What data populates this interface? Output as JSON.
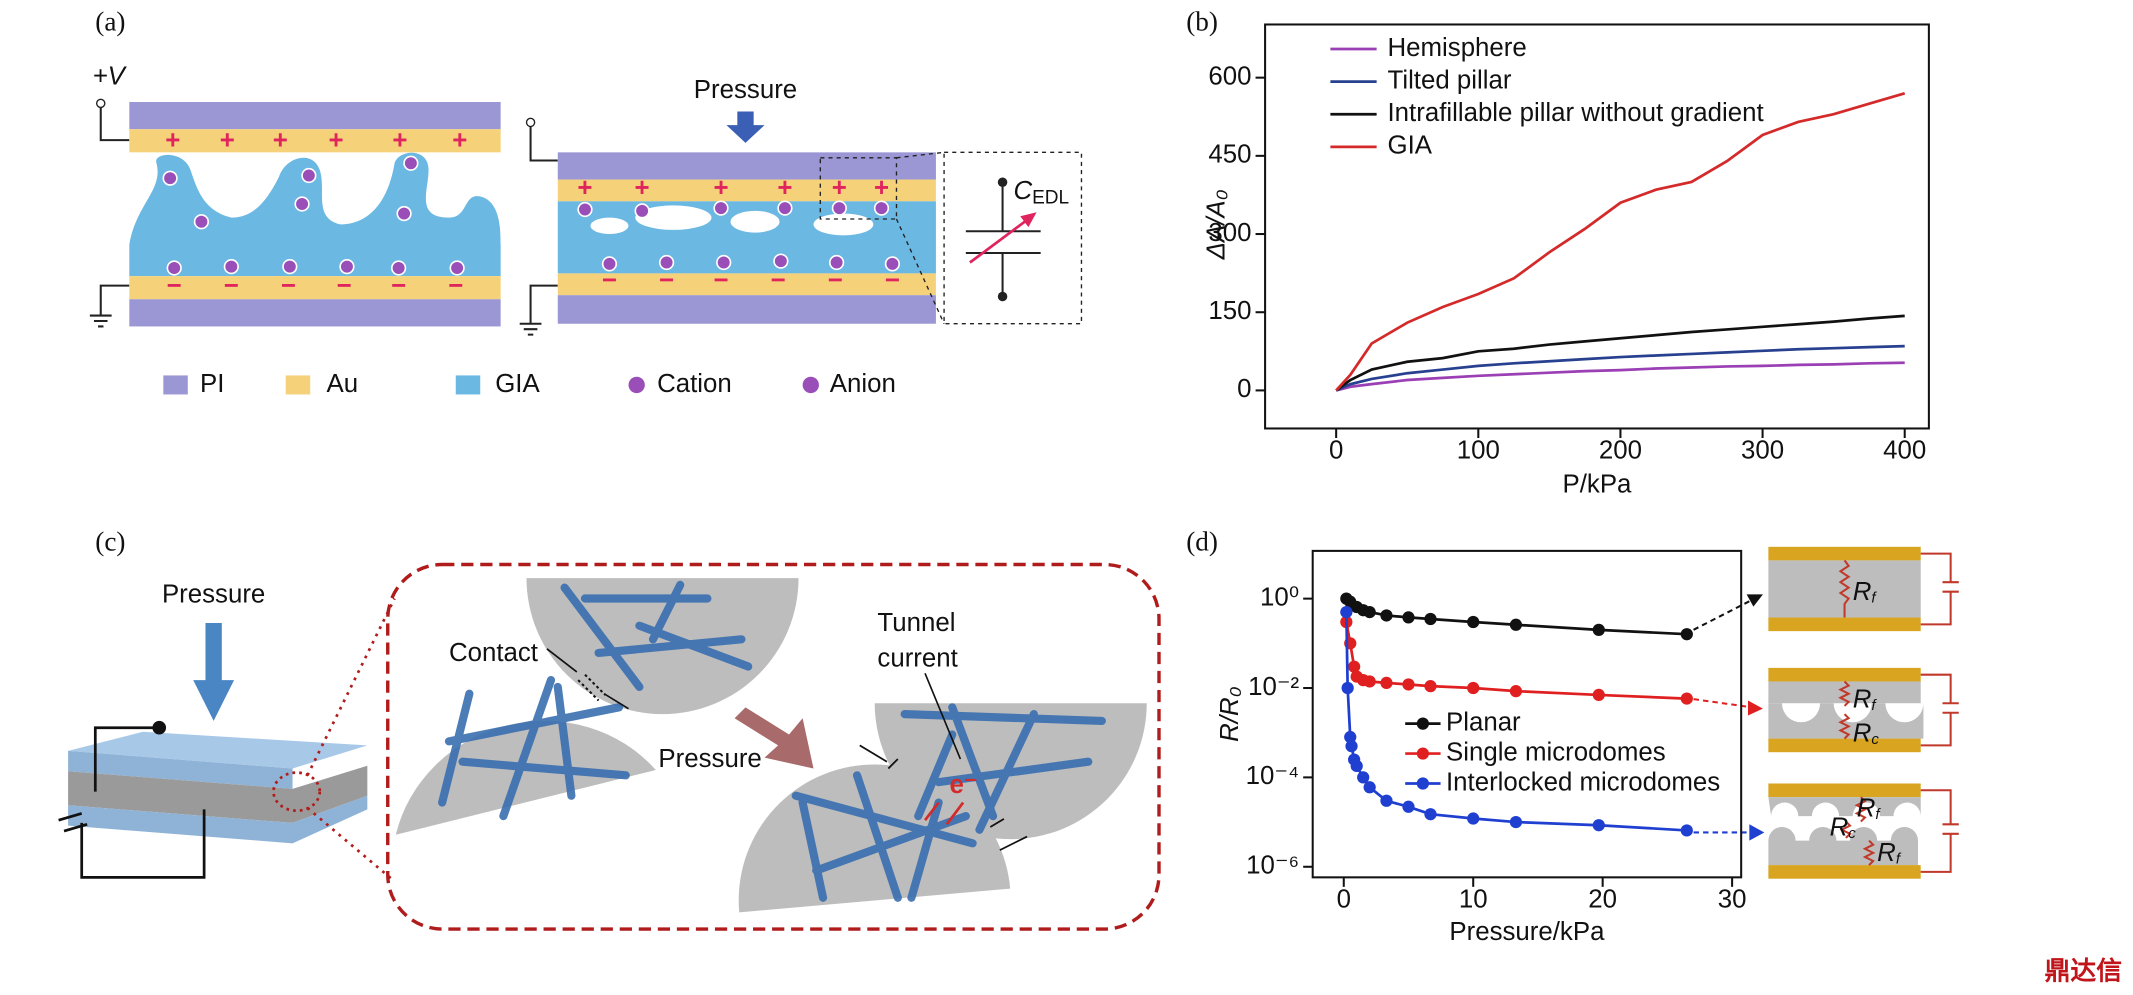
{
  "panel_labels": [
    "(a)",
    "(b)",
    "(c)",
    "(d)"
  ],
  "diagram_a": {
    "voltage": "+V",
    "pressure": "Pressure",
    "capacitor": "C",
    "capacitor_sub": "EDL",
    "legend": [
      "PI",
      "Au",
      "GIA",
      "Cation",
      "Anion"
    ]
  },
  "diagram_c": {
    "pressure_left": "Pressure",
    "contact": "Contact",
    "pressure_mid": "Pressure",
    "tunnel": [
      "Tunnel",
      "current"
    ],
    "electron": "e⁻"
  },
  "diagram_d": {
    "resistors": [
      [
        [
          "R",
          "f"
        ]
      ],
      [
        [
          "R",
          "f"
        ],
        [
          "R",
          "c"
        ]
      ],
      [
        [
          "R",
          "f"
        ],
        [
          "R",
          "c"
        ],
        [
          "R",
          "f"
        ]
      ]
    ]
  },
  "watermark": "鼎达信",
  "chart_data": [
    {
      "type": "line",
      "xlabel": "P/kPa",
      "ylabel": "ΔA/A₀",
      "xlim": [
        -50,
        417
      ],
      "ylim": [
        -73,
        702
      ],
      "xticks": [
        0,
        100,
        200,
        300,
        400
      ],
      "yticks": [
        0,
        150,
        300,
        450,
        600
      ],
      "legend": "upper-left",
      "log_y": false,
      "markers": false,
      "x": [
        0,
        10,
        25,
        50,
        75,
        100,
        125,
        150,
        175,
        200,
        225,
        250,
        275,
        300,
        325,
        350,
        375,
        400
      ],
      "series": [
        {
          "name": "Hemisphere",
          "color": "#9b3fb5",
          "values": [
            0,
            7,
            12,
            20,
            24,
            28,
            31,
            34,
            37,
            39,
            42,
            44,
            46,
            47,
            49,
            50,
            52,
            53
          ]
        },
        {
          "name": "Tilted pillar",
          "color": "#27408f",
          "values": [
            0,
            12,
            22,
            33,
            40,
            47,
            52,
            56,
            60,
            64,
            67,
            70,
            73,
            76,
            79,
            81,
            83,
            85
          ]
        },
        {
          "name": "Intrafillable pillar without gradient",
          "color": "#111111",
          "values": [
            0,
            20,
            40,
            55,
            62,
            75,
            80,
            88,
            94,
            100,
            106,
            112,
            117,
            122,
            127,
            132,
            138,
            143
          ]
        },
        {
          "name": "GIA",
          "color": "#d42a2a",
          "values": [
            0,
            30,
            90,
            130,
            160,
            185,
            215,
            265,
            310,
            360,
            385,
            400,
            440,
            490,
            515,
            530,
            550,
            570
          ]
        }
      ]
    },
    {
      "type": "line",
      "xlabel": "Pressure/kPa",
      "ylabel": "R/R₀",
      "xlim": [
        -2.4,
        30.7
      ],
      "ylim": [
        5.8e-07,
        11.7
      ],
      "log_y": true,
      "markers": true,
      "legend": "center",
      "xticks": [
        0,
        10,
        20,
        30
      ],
      "yticks": [
        {
          "value": 1e-06,
          "label": "10⁻⁶"
        },
        {
          "value": 0.0001,
          "label": "10⁻⁴"
        },
        {
          "value": 0.01,
          "label": "10⁻²"
        },
        {
          "value": 1,
          "label": "10⁰"
        }
      ],
      "series": [
        {
          "name": "Planar",
          "color": "#111111",
          "x": [
            0.2,
            0.5,
            1,
            1.5,
            2,
            3.3,
            5,
            6.7,
            10,
            13.3,
            19.7,
            26.5
          ],
          "values": [
            1.0,
            0.85,
            0.65,
            0.55,
            0.5,
            0.42,
            0.38,
            0.35,
            0.3,
            0.26,
            0.2,
            0.16
          ]
        },
        {
          "name": "Single microdomes",
          "color": "#e02020",
          "x": [
            0.2,
            0.5,
            0.8,
            1,
            1.5,
            2,
            3.3,
            5,
            6.7,
            10,
            13.3,
            19.7,
            26.5
          ],
          "values": [
            0.3,
            0.1,
            0.03,
            0.018,
            0.015,
            0.014,
            0.013,
            0.012,
            0.011,
            0.01,
            0.0085,
            0.007,
            0.0058
          ]
        },
        {
          "name": "Interlocked microdomes",
          "color": "#1f3fd0",
          "x": [
            0.2,
            0.3,
            0.5,
            0.6,
            0.8,
            1,
            1.5,
            2,
            3.3,
            5,
            6.7,
            10,
            13.3,
            19.7,
            26.5
          ],
          "values": [
            0.5,
            0.01,
            0.0008,
            0.0005,
            0.00025,
            0.00018,
            0.0001,
            6e-05,
            3e-05,
            2.2e-05,
            1.5e-05,
            1.2e-05,
            1e-05,
            8.5e-06,
            6.5e-06
          ]
        }
      ]
    }
  ]
}
